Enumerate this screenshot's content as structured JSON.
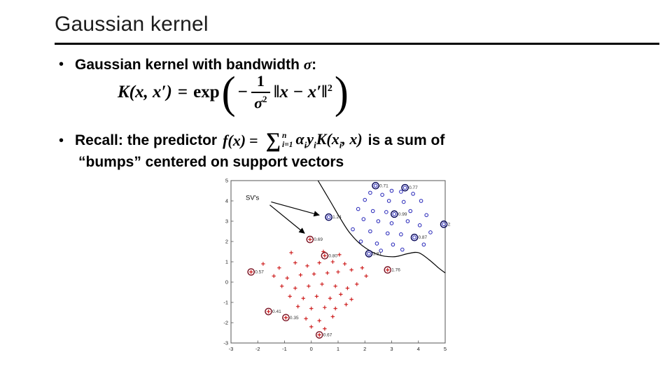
{
  "slide": {
    "title": "Gaussian kernel"
  },
  "bullets": {
    "glyph": "•",
    "b1_pre": "Gaussian kernel with bandwidth ",
    "b1_sigma": "σ",
    "b1_post": ":",
    "b2_pre": "Recall: the predictor",
    "b2_post": "is a sum of",
    "b2_line2": "“bumps” centered on support vectors"
  },
  "formula1": {
    "K_expr": "K(x, x′)",
    "eq": "=",
    "exp": "exp",
    "open_paren": "(",
    "minus": "−",
    "frac_num": "1",
    "frac_den_base": "σ",
    "frac_den_sup": "2",
    "norm_body": "‖x − x′‖",
    "norm_sup": "2",
    "close_paren": ")"
  },
  "formula2": {
    "f_expr": "f(x)",
    "eq": "=",
    "sum": "∑",
    "sum_top": "n",
    "sum_bot": "i=1",
    "alpha": "α",
    "sub1": "i",
    "y": "y",
    "sub2": "i",
    "K_open": "K(x",
    "sub3": "i",
    "tail": ", x)"
  },
  "chart_data": {
    "type": "scatter",
    "title": "",
    "xlabel": "",
    "ylabel": "",
    "xlim": [
      -3,
      5
    ],
    "ylim": [
      -3,
      5
    ],
    "x_ticks": [
      -3,
      -2,
      -1,
      0,
      1,
      2,
      3,
      4,
      5
    ],
    "y_ticks": [
      -3,
      -2,
      -1,
      0,
      1,
      2,
      3,
      4,
      5
    ],
    "grid": false,
    "legend": "none",
    "colors": {
      "pos": "#2323b8",
      "neg": "#cc1414",
      "pos_sv_ring": "#000055",
      "neg_sv_ring": "#7a1222",
      "boundary": "#000000",
      "sv_label": "#333333"
    },
    "series": [
      {
        "name": "positive-class",
        "marker": "circle",
        "points": [
          [
            2.2,
            4.4
          ],
          [
            2.65,
            4.3
          ],
          [
            3.0,
            4.5
          ],
          [
            3.35,
            4.45
          ],
          [
            3.8,
            4.35
          ],
          [
            2.0,
            4.05
          ],
          [
            2.9,
            4.0
          ],
          [
            3.45,
            3.95
          ],
          [
            4.1,
            4.0
          ],
          [
            1.75,
            3.6
          ],
          [
            2.3,
            3.5
          ],
          [
            2.8,
            3.45
          ],
          [
            3.7,
            3.5
          ],
          [
            4.3,
            3.3
          ],
          [
            1.95,
            3.1
          ],
          [
            2.5,
            3.0
          ],
          [
            3.0,
            2.9
          ],
          [
            3.6,
            3.0
          ],
          [
            4.05,
            2.8
          ],
          [
            1.55,
            2.6
          ],
          [
            2.2,
            2.5
          ],
          [
            2.85,
            2.4
          ],
          [
            3.35,
            2.35
          ],
          [
            4.45,
            2.45
          ],
          [
            1.85,
            2.0
          ],
          [
            2.45,
            1.9
          ],
          [
            3.05,
            1.85
          ],
          [
            4.2,
            1.85
          ],
          [
            2.6,
            1.55
          ],
          [
            3.4,
            1.6
          ]
        ]
      },
      {
        "name": "negative-class",
        "marker": "plus",
        "points": [
          [
            -1.8,
            0.9
          ],
          [
            -1.2,
            0.7
          ],
          [
            -0.6,
            0.95
          ],
          [
            -0.15,
            0.8
          ],
          [
            0.3,
            0.95
          ],
          [
            0.8,
            1.0
          ],
          [
            1.25,
            0.9
          ],
          [
            -1.4,
            0.3
          ],
          [
            -0.9,
            0.2
          ],
          [
            -0.4,
            0.35
          ],
          [
            0.1,
            0.4
          ],
          [
            0.6,
            0.45
          ],
          [
            1.0,
            0.5
          ],
          [
            1.5,
            0.6
          ],
          [
            1.9,
            0.7
          ],
          [
            -1.1,
            -0.2
          ],
          [
            -0.6,
            -0.3
          ],
          [
            -0.1,
            -0.2
          ],
          [
            0.4,
            -0.1
          ],
          [
            0.9,
            -0.2
          ],
          [
            1.35,
            -0.3
          ],
          [
            1.7,
            -0.1
          ],
          [
            -0.8,
            -0.7
          ],
          [
            -0.3,
            -0.8
          ],
          [
            0.2,
            -0.7
          ],
          [
            0.7,
            -0.8
          ],
          [
            1.1,
            -0.6
          ],
          [
            1.5,
            -0.85
          ],
          [
            -0.5,
            -1.2
          ],
          [
            0.0,
            -1.3
          ],
          [
            0.5,
            -1.25
          ],
          [
            0.9,
            -1.3
          ],
          [
            1.3,
            -1.1
          ],
          [
            -0.2,
            -1.8
          ],
          [
            0.3,
            -1.9
          ],
          [
            0.8,
            -1.7
          ],
          [
            0.0,
            -2.2
          ],
          [
            0.5,
            -2.3
          ],
          [
            0.45,
            1.5
          ],
          [
            1.05,
            1.35
          ],
          [
            -0.75,
            1.45
          ],
          [
            2.05,
            0.3
          ]
        ]
      }
    ],
    "support_vectors": {
      "positive": [
        {
          "x": 2.4,
          "y": 4.75,
          "label": "0.71"
        },
        {
          "x": 3.5,
          "y": 4.65,
          "label": "0.77"
        },
        {
          "x": 0.65,
          "y": 3.2,
          "label": "1.24"
        },
        {
          "x": 3.1,
          "y": 3.35,
          "label": "0.99"
        },
        {
          "x": 4.95,
          "y": 2.85,
          "label": "2.74"
        },
        {
          "x": 3.85,
          "y": 2.2,
          "label": "0.87"
        },
        {
          "x": 2.15,
          "y": 1.4,
          "label": "3.81"
        }
      ],
      "negative": [
        {
          "x": -0.05,
          "y": 2.1,
          "label": "0.69"
        },
        {
          "x": 0.5,
          "y": 1.3,
          "label": "0.80"
        },
        {
          "x": 2.85,
          "y": 0.6,
          "label": "1.76"
        },
        {
          "x": -2.25,
          "y": 0.5,
          "label": "0.57"
        },
        {
          "x": -1.6,
          "y": -1.45,
          "label": "0.41"
        },
        {
          "x": -0.95,
          "y": -1.75,
          "label": "0.35"
        },
        {
          "x": 0.3,
          "y": -2.6,
          "label": "0.67"
        }
      ]
    },
    "boundary": [
      [
        0.25,
        5.0
      ],
      [
        0.7,
        4.0
      ],
      [
        1.1,
        3.1
      ],
      [
        1.45,
        2.4
      ],
      [
        1.9,
        1.8
      ],
      [
        2.5,
        1.35
      ],
      [
        3.1,
        1.25
      ],
      [
        3.6,
        1.4
      ],
      [
        4.0,
        1.45
      ],
      [
        4.4,
        1.1
      ],
      [
        4.75,
        0.7
      ],
      [
        5.0,
        0.45
      ]
    ],
    "annotation": {
      "text": "SV's",
      "x": -2.45,
      "y": 4.05,
      "arrows": [
        {
          "from": [
            -1.5,
            3.95
          ],
          "to": [
            0.3,
            3.3
          ]
        },
        {
          "from": [
            -1.55,
            3.8
          ],
          "to": [
            -0.25,
            2.4
          ]
        }
      ]
    }
  }
}
